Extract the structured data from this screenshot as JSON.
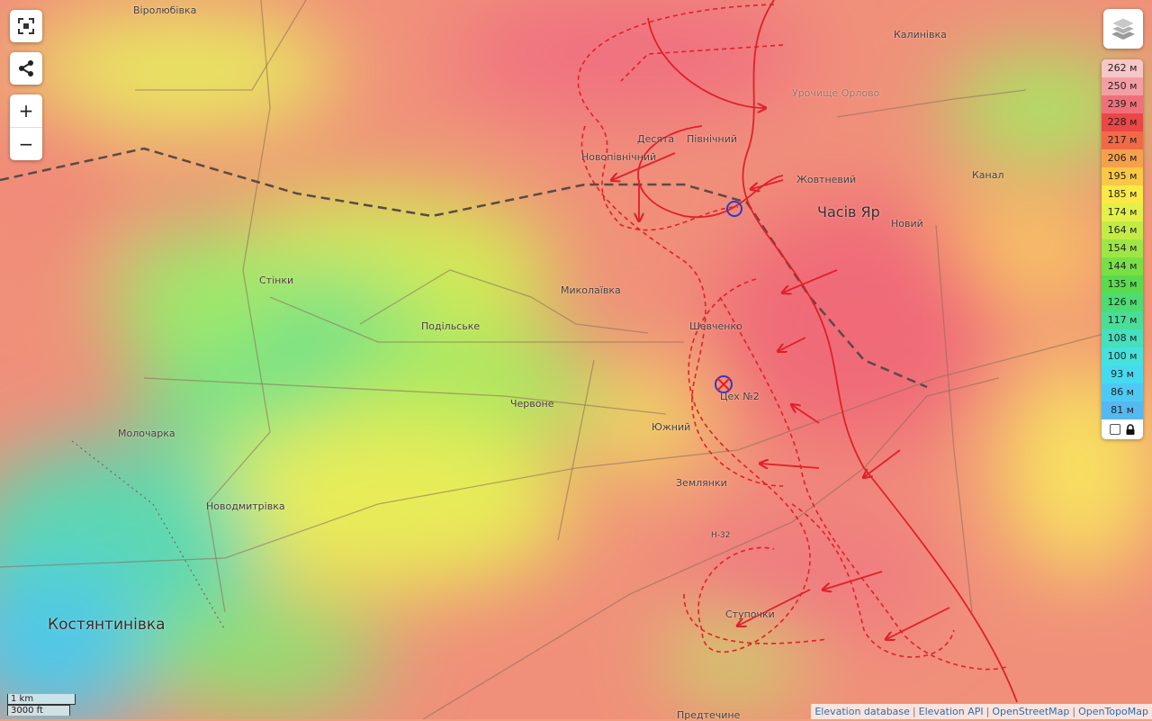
{
  "controls": {
    "fullscreen_icon": "fullscreen-icon",
    "share_icon": "share-icon",
    "zoom_in": "+",
    "zoom_out": "−",
    "layers_icon": "layers-icon"
  },
  "legend": {
    "items": [
      {
        "label": "262 м",
        "color": "#f7c6c8"
      },
      {
        "label": "250 м",
        "color": "#f49ea3"
      },
      {
        "label": "239 м",
        "color": "#f0707a"
      },
      {
        "label": "228 м",
        "color": "#ec4646"
      },
      {
        "label": "217 м",
        "color": "#f26a45"
      },
      {
        "label": "206 м",
        "color": "#f7a04c"
      },
      {
        "label": "195 м",
        "color": "#fbc845"
      },
      {
        "label": "185 м",
        "color": "#fbe945"
      },
      {
        "label": "174 м",
        "color": "#e3f048"
      },
      {
        "label": "164 м",
        "color": "#c2ec45"
      },
      {
        "label": "154 м",
        "color": "#9ee645"
      },
      {
        "label": "144 м",
        "color": "#78e045"
      },
      {
        "label": "135 м",
        "color": "#58dc4d"
      },
      {
        "label": "126 м",
        "color": "#4cdc72"
      },
      {
        "label": "117 м",
        "color": "#48de98"
      },
      {
        "label": "108 м",
        "color": "#45e0bd"
      },
      {
        "label": "100 м",
        "color": "#45e2dd"
      },
      {
        "label": "93 м",
        "color": "#45daf0"
      },
      {
        "label": "86 м",
        "color": "#4ccaf5"
      },
      {
        "label": "81 м",
        "color": "#55b8f0"
      }
    ],
    "lock_icon": "lock-icon"
  },
  "places": [
    {
      "name": "Віролюбівка"
    },
    {
      "name": "Калинівка"
    },
    {
      "name": "Урочище Орлово"
    },
    {
      "name": "Десята"
    },
    {
      "name": "Північний"
    },
    {
      "name": "Новопівнічний"
    },
    {
      "name": "Жовтневий"
    },
    {
      "name": "Часів Яр"
    },
    {
      "name": "Новий"
    },
    {
      "name": "Канал"
    },
    {
      "name": "Стінки"
    },
    {
      "name": "Миколаївка"
    },
    {
      "name": "Подільське"
    },
    {
      "name": "Шевченко"
    },
    {
      "name": "Цех №2"
    },
    {
      "name": "Червоне"
    },
    {
      "name": "Южний"
    },
    {
      "name": "Молочарка"
    },
    {
      "name": "Землянки"
    },
    {
      "name": "Новодмитрівка"
    },
    {
      "name": "Н-32"
    },
    {
      "name": "Ступочки"
    },
    {
      "name": "Костянтинівка"
    },
    {
      "name": "Предтечине"
    }
  ],
  "scale": {
    "metric": "1 km",
    "imperial": "3000 ft"
  },
  "attribution": [
    "Elevation database",
    "Elevation API",
    "OpenStreetMap",
    "OpenTopoMap"
  ]
}
